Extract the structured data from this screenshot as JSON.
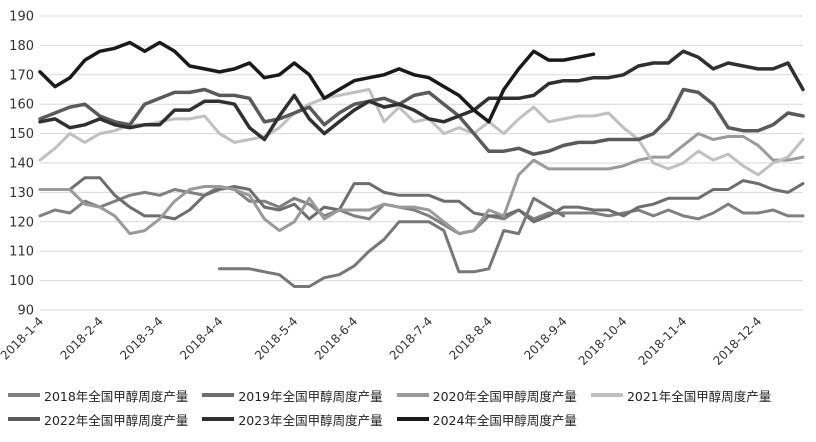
{
  "chart_data": {
    "type": "line",
    "title": "",
    "xlabel": "",
    "ylabel": "",
    "ylim": [
      90,
      190
    ],
    "yticks": [
      90,
      100,
      110,
      120,
      130,
      140,
      150,
      160,
      170,
      180,
      190
    ],
    "x_count": 52,
    "xtick_labels": [
      {
        "index": 0,
        "label": "2018-1-4"
      },
      {
        "index": 4,
        "label": "2018-2-4"
      },
      {
        "index": 8,
        "label": "2018-3-4"
      },
      {
        "index": 12,
        "label": "2018-4-4"
      },
      {
        "index": 17,
        "label": "2018-5-4"
      },
      {
        "index": 21,
        "label": "2018-6-4"
      },
      {
        "index": 26,
        "label": "2018-7-4"
      },
      {
        "index": 30,
        "label": "2018-8-4"
      },
      {
        "index": 35,
        "label": "2018-9-4"
      },
      {
        "index": 39,
        "label": "2018-10-4"
      },
      {
        "index": 43,
        "label": "2018-11-4"
      },
      {
        "index": 48,
        "label": "2018-12-4"
      }
    ],
    "series": [
      {
        "name": "2018年全国甲醇周度产量",
        "color": "#808080",
        "start": 0,
        "values": [
          122,
          124,
          123,
          127,
          125,
          127,
          129,
          130,
          129,
          131,
          130,
          129,
          132,
          131,
          127,
          127,
          125,
          128,
          126,
          122,
          124,
          122,
          121,
          126,
          125,
          124,
          122,
          119,
          116,
          117,
          122,
          121,
          124,
          121,
          123,
          123,
          123,
          123,
          122,
          123,
          124,
          122,
          124,
          122,
          121,
          123,
          126,
          123,
          123,
          124,
          122,
          122
        ]
      },
      {
        "name": "2019年全国甲醇周度产量",
        "color": "#6e6e6e",
        "start": 0,
        "values": [
          131,
          131,
          131,
          135,
          135,
          129,
          125,
          122,
          122,
          121,
          124,
          129,
          131,
          132,
          131,
          125,
          124,
          126,
          121,
          125,
          124,
          133,
          133,
          130,
          129,
          129,
          129,
          127,
          127,
          123,
          122,
          122,
          124,
          120,
          122,
          125,
          125,
          124,
          124,
          122,
          125,
          126,
          128,
          128,
          128,
          131,
          131,
          134,
          133,
          131,
          130,
          133
        ]
      },
      {
        "name": "2020年全国甲醇周度产量",
        "color": "#9a9a9a",
        "start": 0,
        "values": [
          131,
          131,
          131,
          126,
          125,
          122,
          116,
          117,
          121,
          127,
          131,
          132,
          132,
          131,
          129,
          121,
          117,
          120,
          128,
          121,
          124,
          124,
          124,
          126,
          125,
          125,
          124,
          120,
          116,
          117,
          124,
          122,
          136,
          141,
          138,
          138,
          138,
          138,
          138,
          139,
          141,
          142,
          142,
          146,
          150,
          148,
          149,
          149,
          146,
          141,
          141,
          142
        ]
      },
      {
        "name": "2021年全国甲醇周度产量",
        "color": "#c0c0c0",
        "start": 0,
        "values": [
          141,
          145,
          150,
          147,
          150,
          151,
          153,
          153,
          154,
          155,
          155,
          156,
          150,
          147,
          148,
          149,
          152,
          157,
          160,
          162,
          163,
          164,
          165,
          154,
          159,
          154,
          155,
          150,
          152,
          150,
          154,
          150,
          155,
          159,
          154,
          155,
          156,
          156,
          157,
          152,
          148,
          140,
          138,
          140,
          144,
          141,
          143,
          139,
          136,
          140,
          142,
          148
        ]
      },
      {
        "name": "2022年全国甲醇周度产量",
        "color": "#5a5a5a",
        "start": 0,
        "values": [
          155,
          157,
          159,
          160,
          156,
          154,
          153,
          160,
          162,
          164,
          164,
          165,
          163,
          163,
          162,
          154,
          155,
          157,
          159,
          153,
          157,
          160,
          161,
          162,
          160,
          163,
          164,
          160,
          156,
          150,
          144,
          144,
          145,
          143,
          144,
          146,
          147,
          147,
          148,
          148,
          148,
          150,
          155,
          165,
          164,
          160,
          152,
          151,
          151,
          153,
          157,
          156
        ]
      },
      {
        "name": "2023年全国甲醇周度产量",
        "color": "#303030",
        "start": 0,
        "values": [
          154,
          155,
          152,
          153,
          155,
          153,
          152,
          153,
          153,
          158,
          158,
          161,
          161,
          160,
          152,
          148,
          156,
          163,
          155,
          150,
          154,
          158,
          161,
          159,
          160,
          158,
          155,
          154,
          156,
          158,
          162,
          162,
          162,
          163,
          167,
          168,
          168,
          169,
          169,
          170,
          173,
          174,
          174,
          178,
          176,
          172,
          174,
          173,
          172,
          172,
          174,
          165
        ]
      },
      {
        "name": "2024年全国甲醇周度产量",
        "color": "#1a1a1a",
        "start": 0,
        "values": [
          171,
          166,
          169,
          175,
          178,
          179,
          181,
          178,
          181,
          178,
          173,
          172,
          171,
          172,
          174,
          169,
          170,
          174,
          170,
          162,
          165,
          168,
          169,
          170,
          172,
          170,
          169,
          166,
          163,
          158,
          154,
          165,
          172,
          178,
          175,
          175,
          176,
          177
        ]
      },
      {
        "name": "",
        "color": "#777777",
        "start": 12,
        "values": [
          104,
          104,
          104,
          103,
          102,
          98,
          98,
          101,
          102,
          105,
          110,
          114,
          120,
          120,
          120,
          117,
          103,
          103,
          104,
          117,
          116,
          128,
          125,
          122
        ]
      }
    ],
    "legend_position": "bottom"
  }
}
